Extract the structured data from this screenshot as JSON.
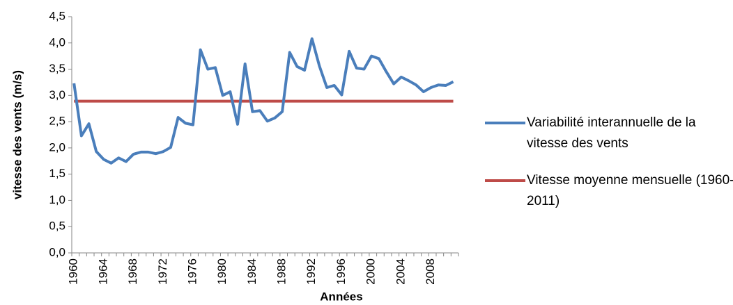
{
  "chart_data": {
    "type": "line",
    "x_label": "Années",
    "y_label": "vitesse des vents (m/s)",
    "categories": [
      "1960",
      null,
      null,
      null,
      "1964",
      null,
      null,
      null,
      "1968",
      null,
      null,
      null,
      "1972",
      null,
      null,
      null,
      "1976",
      null,
      null,
      null,
      "1980",
      null,
      null,
      null,
      "1984",
      null,
      null,
      null,
      "1988",
      null,
      null,
      null,
      "1992",
      null,
      null,
      null,
      "1996",
      null,
      null,
      null,
      "2000",
      null,
      null,
      null,
      "2004",
      null,
      null,
      null,
      "2008",
      null,
      null,
      null
    ],
    "series": [
      {
        "name": "Variabilité interannuelle de la vitesse des vents",
        "color": "#4a7ebb",
        "values": [
          3.23,
          2.23,
          2.46,
          1.93,
          1.78,
          1.71,
          1.81,
          1.74,
          1.88,
          1.92,
          1.92,
          1.89,
          1.93,
          2.01,
          2.58,
          2.47,
          2.44,
          3.87,
          3.5,
          3.53,
          3.0,
          3.07,
          2.45,
          3.6,
          2.69,
          2.71,
          2.51,
          2.57,
          2.69,
          3.82,
          3.55,
          3.48,
          4.08,
          3.56,
          3.15,
          3.19,
          3.01,
          3.84,
          3.52,
          3.5,
          3.75,
          3.7,
          3.45,
          3.22,
          3.35,
          3.28,
          3.2,
          3.07,
          3.15,
          3.2,
          3.19,
          3.26
        ]
      },
      {
        "name": "Vitesse moyenne mensuelle (1960-2011)",
        "color": "#be4b48",
        "values": [
          2.89,
          2.89,
          2.89,
          2.89,
          2.89,
          2.89,
          2.89,
          2.89,
          2.89,
          2.89,
          2.89,
          2.89,
          2.89,
          2.89,
          2.89,
          2.89,
          2.89,
          2.89,
          2.89,
          2.89,
          2.89,
          2.89,
          2.89,
          2.89,
          2.89,
          2.89,
          2.89,
          2.89,
          2.89,
          2.89,
          2.89,
          2.89,
          2.89,
          2.89,
          2.89,
          2.89,
          2.89,
          2.89,
          2.89,
          2.89,
          2.89,
          2.89,
          2.89,
          2.89,
          2.89,
          2.89,
          2.89,
          2.89,
          2.89,
          2.89,
          2.89,
          2.89
        ]
      }
    ],
    "ylim": [
      0,
      4.5
    ],
    "yticks": [
      {
        "value": 0,
        "label": "0,0"
      },
      {
        "value": 0.5,
        "label": "0,5"
      },
      {
        "value": 1,
        "label": "1,0"
      },
      {
        "value": 1.5,
        "label": "1,5"
      },
      {
        "value": 2,
        "label": "2,0"
      },
      {
        "value": 2.5,
        "label": "2,5"
      },
      {
        "value": 3,
        "label": "3,0"
      },
      {
        "value": 3.5,
        "label": "3,5"
      },
      {
        "value": 4,
        "label": "4,0"
      },
      {
        "value": 4.5,
        "label": "4,5"
      }
    ],
    "legend": "right"
  }
}
